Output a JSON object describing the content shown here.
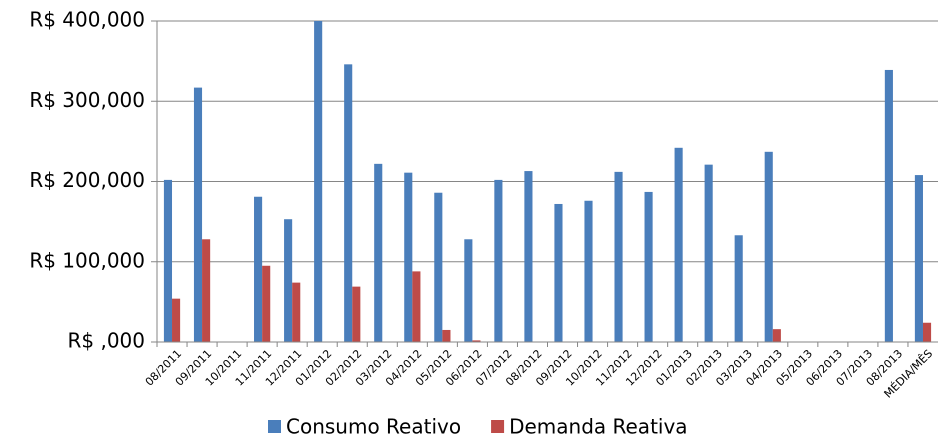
{
  "chart_data": {
    "type": "bar",
    "categories": [
      "08/2011",
      "09/2011",
      "10/2011",
      "11/2011",
      "12/2011",
      "01/2012",
      "02/2012",
      "03/2012",
      "04/2012",
      "05/2012",
      "06/2012",
      "07/2012",
      "08/2012",
      "09/2012",
      "10/2012",
      "11/2012",
      "12/2012",
      "01/2013",
      "02/2013",
      "03/2013",
      "04/2013",
      "05/2013",
      "06/2013",
      "07/2013",
      "08/2013",
      "MÉDIA/MÊS"
    ],
    "series": [
      {
        "name": "Consumo Reativo",
        "color": "#4a7ebb",
        "values": [
          202000,
          317000,
          0,
          181000,
          153000,
          400000,
          346000,
          222000,
          211000,
          186000,
          128000,
          202000,
          213000,
          172000,
          176000,
          212000,
          187000,
          242000,
          221000,
          133000,
          237000,
          0,
          0,
          0,
          339000,
          208000
        ]
      },
      {
        "name": "Demanda Reativa",
        "color": "#be4b48",
        "values": [
          54000,
          128000,
          0,
          95000,
          74000,
          0,
          69000,
          0,
          88000,
          15000,
          2000,
          0,
          0,
          0,
          0,
          0,
          0,
          0,
          0,
          0,
          16000,
          0,
          0,
          0,
          0,
          24000
        ]
      }
    ],
    "ylim": [
      0,
      400000
    ],
    "yticks": [
      {
        "value": 0,
        "label": "R$ ,000"
      },
      {
        "value": 100000,
        "label": "R$ 100,000"
      },
      {
        "value": 200000,
        "label": "R$ 200,000"
      },
      {
        "value": 300000,
        "label": "R$ 300,000"
      },
      {
        "value": 400000,
        "label": "R$ 400,000"
      }
    ],
    "grid": true,
    "legend": "bottom"
  }
}
